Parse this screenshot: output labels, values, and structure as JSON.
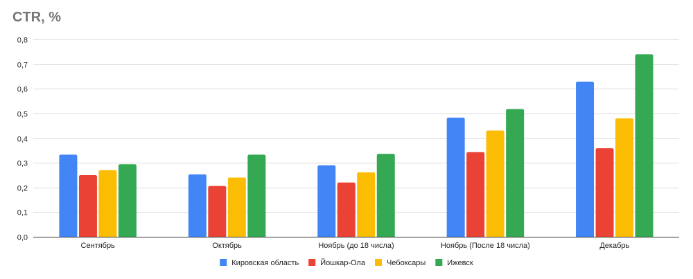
{
  "chart_data": {
    "type": "bar",
    "title": "CTR, %",
    "xlabel": "",
    "ylabel": "",
    "ylim": [
      0,
      0.8
    ],
    "y_ticks": [
      "0,0",
      "0,1",
      "0,2",
      "0,3",
      "0,4",
      "0,5",
      "0,6",
      "0,7",
      "0,8"
    ],
    "y_tick_values": [
      0,
      0.1,
      0.2,
      0.3,
      0.4,
      0.5,
      0.6,
      0.7,
      0.8
    ],
    "grid": true,
    "legend_position": "bottom",
    "categories": [
      "Сентябрь",
      "Октябрь",
      "Ноябрь (до 18 числа)",
      "Ноябрь (После 18 числа)",
      "Декабрь"
    ],
    "series": [
      {
        "name": "Кировская область",
        "color": "#4285F4",
        "values": [
          0.333,
          0.253,
          0.29,
          0.483,
          0.629
        ]
      },
      {
        "name": "Йошкар-Ола",
        "color": "#EA4335",
        "values": [
          0.25,
          0.206,
          0.22,
          0.343,
          0.359
        ]
      },
      {
        "name": "Чебоксары",
        "color": "#FBBC04",
        "values": [
          0.27,
          0.24,
          0.261,
          0.431,
          0.48
        ]
      },
      {
        "name": "Ижевск",
        "color": "#34A853",
        "values": [
          0.294,
          0.333,
          0.336,
          0.518,
          0.74
        ]
      }
    ]
  }
}
